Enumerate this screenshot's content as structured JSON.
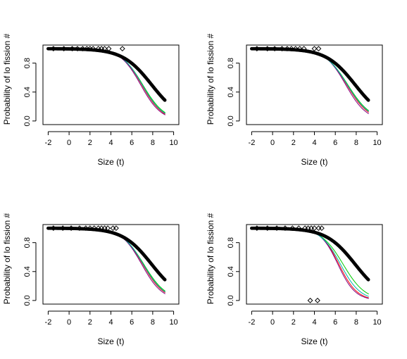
{
  "colors": {
    "background": "#ffffff",
    "axis": "#000000",
    "fitted_curve": "#000000",
    "series": [
      "#ff0000",
      "#7f007f",
      "#00cc00",
      "#00b0b0"
    ]
  },
  "chart_data": [
    {
      "type": "scatter",
      "panel": "top-left",
      "xlabel": "Size (t)",
      "ylabel": "Probability of lo fission #",
      "xlim": [
        -2.5,
        10.5
      ],
      "ylim": [
        -0.05,
        1.05
      ],
      "x_ticks": [
        -2,
        0,
        2,
        4,
        6,
        8,
        10
      ],
      "y_ticks": [
        0.0,
        0.4,
        0.8
      ],
      "thick_curve": {
        "midpoint": 7.9,
        "slope": 0.72,
        "x_range": [
          -2,
          9.2
        ]
      },
      "thin_curves": [
        {
          "color_index": 0,
          "midpoint": 6.95,
          "slope": 1.0
        },
        {
          "color_index": 1,
          "midpoint": 6.85,
          "slope": 1.02
        },
        {
          "color_index": 2,
          "midpoint": 7.05,
          "slope": 0.95
        },
        {
          "color_index": 3,
          "midpoint": 7.0,
          "slope": 0.98
        }
      ],
      "points": [
        {
          "x": -1.5,
          "y": 1.0
        },
        {
          "x": -0.5,
          "y": 1.0
        },
        {
          "x": 0.3,
          "y": 1.0
        },
        {
          "x": 0.8,
          "y": 1.0
        },
        {
          "x": 1.3,
          "y": 1.0
        },
        {
          "x": 1.7,
          "y": 1.0
        },
        {
          "x": 2.0,
          "y": 1.0
        },
        {
          "x": 2.3,
          "y": 1.0
        },
        {
          "x": 2.8,
          "y": 1.0
        },
        {
          "x": 3.1,
          "y": 1.0
        },
        {
          "x": 3.4,
          "y": 1.0
        },
        {
          "x": 3.8,
          "y": 1.0
        },
        {
          "x": 5.1,
          "y": 1.0
        }
      ]
    },
    {
      "type": "scatter",
      "panel": "top-right",
      "xlabel": "Size (t)",
      "ylabel": "Probability of lo fission #",
      "xlim": [
        -2.5,
        10.5
      ],
      "ylim": [
        -0.05,
        1.05
      ],
      "x_ticks": [
        -2,
        0,
        2,
        4,
        6,
        8,
        10
      ],
      "y_ticks": [
        0.0,
        0.4,
        0.8
      ],
      "thick_curve": {
        "midpoint": 7.9,
        "slope": 0.72,
        "x_range": [
          -2,
          9.2
        ]
      },
      "thin_curves": [
        {
          "color_index": 0,
          "midpoint": 7.1,
          "slope": 0.95
        },
        {
          "color_index": 1,
          "midpoint": 7.0,
          "slope": 1.0
        },
        {
          "color_index": 2,
          "midpoint": 7.2,
          "slope": 0.9
        },
        {
          "color_index": 3,
          "midpoint": 7.15,
          "slope": 0.92
        }
      ],
      "points": [
        {
          "x": -1.5,
          "y": 1.0
        },
        {
          "x": -0.5,
          "y": 1.0
        },
        {
          "x": 0.2,
          "y": 1.0
        },
        {
          "x": 0.9,
          "y": 1.0
        },
        {
          "x": 1.4,
          "y": 1.0
        },
        {
          "x": 1.8,
          "y": 1.0
        },
        {
          "x": 2.2,
          "y": 1.0
        },
        {
          "x": 2.6,
          "y": 1.0
        },
        {
          "x": 3.0,
          "y": 1.0
        },
        {
          "x": 4.0,
          "y": 1.0
        },
        {
          "x": 4.4,
          "y": 1.0
        }
      ]
    },
    {
      "type": "scatter",
      "panel": "bottom-left",
      "xlabel": "Size (t)",
      "ylabel": "Probability of lo fission #",
      "xlim": [
        -2.5,
        10.5
      ],
      "ylim": [
        -0.05,
        1.05
      ],
      "x_ticks": [
        -2,
        0,
        2,
        4,
        6,
        8,
        10
      ],
      "y_ticks": [
        0.0,
        0.4,
        0.8
      ],
      "thick_curve": {
        "midpoint": 7.9,
        "slope": 0.72,
        "x_range": [
          -2,
          9.2
        ]
      },
      "thin_curves": [
        {
          "color_index": 0,
          "midpoint": 7.05,
          "slope": 0.98
        },
        {
          "color_index": 1,
          "midpoint": 6.95,
          "slope": 1.02
        },
        {
          "color_index": 2,
          "midpoint": 7.15,
          "slope": 0.93
        },
        {
          "color_index": 3,
          "midpoint": 7.1,
          "slope": 0.96
        }
      ],
      "points": [
        {
          "x": -1.5,
          "y": 1.0
        },
        {
          "x": -0.6,
          "y": 1.0
        },
        {
          "x": 0.2,
          "y": 1.0
        },
        {
          "x": 1.0,
          "y": 1.0
        },
        {
          "x": 1.6,
          "y": 1.0
        },
        {
          "x": 2.0,
          "y": 1.0
        },
        {
          "x": 2.4,
          "y": 1.0
        },
        {
          "x": 2.8,
          "y": 1.0
        },
        {
          "x": 3.1,
          "y": 1.0
        },
        {
          "x": 3.4,
          "y": 1.0
        },
        {
          "x": 3.7,
          "y": 1.0
        },
        {
          "x": 4.2,
          "y": 1.0
        },
        {
          "x": 4.5,
          "y": 1.0
        }
      ]
    },
    {
      "type": "scatter",
      "panel": "bottom-right",
      "xlabel": "Size (t)",
      "ylabel": "Probability of lo fission #",
      "xlim": [
        -2.5,
        10.5
      ],
      "ylim": [
        -0.05,
        1.05
      ],
      "x_ticks": [
        -2,
        0,
        2,
        4,
        6,
        8,
        10
      ],
      "y_ticks": [
        0.0,
        0.4,
        0.8
      ],
      "thick_curve": {
        "midpoint": 7.9,
        "slope": 0.72,
        "x_range": [
          -2,
          9.2
        ]
      },
      "thin_curves": [
        {
          "color_index": 0,
          "midpoint": 6.35,
          "slope": 1.15
        },
        {
          "color_index": 1,
          "midpoint": 6.25,
          "slope": 1.2
        },
        {
          "color_index": 2,
          "midpoint": 6.75,
          "slope": 0.95
        },
        {
          "color_index": 3,
          "midpoint": 6.5,
          "slope": 1.05
        }
      ],
      "points": [
        {
          "x": -1.5,
          "y": 1.0
        },
        {
          "x": -0.5,
          "y": 1.0
        },
        {
          "x": 0.4,
          "y": 1.0
        },
        {
          "x": 1.2,
          "y": 1.0
        },
        {
          "x": 1.9,
          "y": 1.0
        },
        {
          "x": 2.5,
          "y": 1.0
        },
        {
          "x": 3.1,
          "y": 1.0
        },
        {
          "x": 3.4,
          "y": 1.0
        },
        {
          "x": 3.7,
          "y": 1.0
        },
        {
          "x": 4.0,
          "y": 1.0
        },
        {
          "x": 4.4,
          "y": 1.0
        },
        {
          "x": 4.7,
          "y": 1.0
        },
        {
          "x": 3.6,
          "y": 0.0
        },
        {
          "x": 4.3,
          "y": 0.0
        }
      ]
    }
  ]
}
